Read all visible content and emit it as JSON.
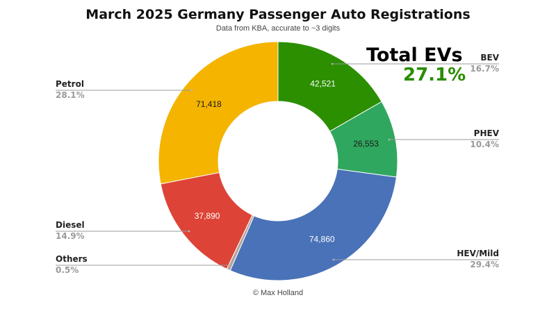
{
  "chart_data": {
    "type": "pie",
    "donut": true,
    "title": "March 2025 Germany Passenger Auto Registrations",
    "subtitle": "Data from KBA, accurate to ~3 digits",
    "credit": "© Max Holland",
    "highlight": {
      "label": "Total EVs",
      "value": "27.1%",
      "color": "#2a8c00"
    },
    "slices": [
      {
        "name": "BEV",
        "value": 42521,
        "value_label": "42,521",
        "percent": "16.7%",
        "color": "#2b8f00",
        "value_color": "#ffffff",
        "label_side": "right"
      },
      {
        "name": "PHEV",
        "value": 26553,
        "value_label": "26,553",
        "percent": "10.4%",
        "color": "#30a75e",
        "value_color": "#1a1a1a",
        "label_side": "right"
      },
      {
        "name": "HEV/Mild",
        "value": 74860,
        "value_label": "74,860",
        "percent": "29.4%",
        "color": "#4a72b8",
        "value_color": "#ffffff",
        "label_side": "right"
      },
      {
        "name": "Others",
        "value": 1273,
        "value_label": "",
        "percent": "0.5%",
        "color": "#b4a49a",
        "value_color": "#ffffff",
        "label_side": "left"
      },
      {
        "name": "Diesel",
        "value": 37890,
        "value_label": "37,890",
        "percent": "14.9%",
        "color": "#dd4437",
        "value_color": "#ffffff",
        "label_side": "left"
      },
      {
        "name": "Petrol",
        "value": 71418,
        "value_label": "71,418",
        "percent": "28.1%",
        "color": "#f4b400",
        "value_color": "#1a1a1a",
        "label_side": "left"
      }
    ]
  }
}
